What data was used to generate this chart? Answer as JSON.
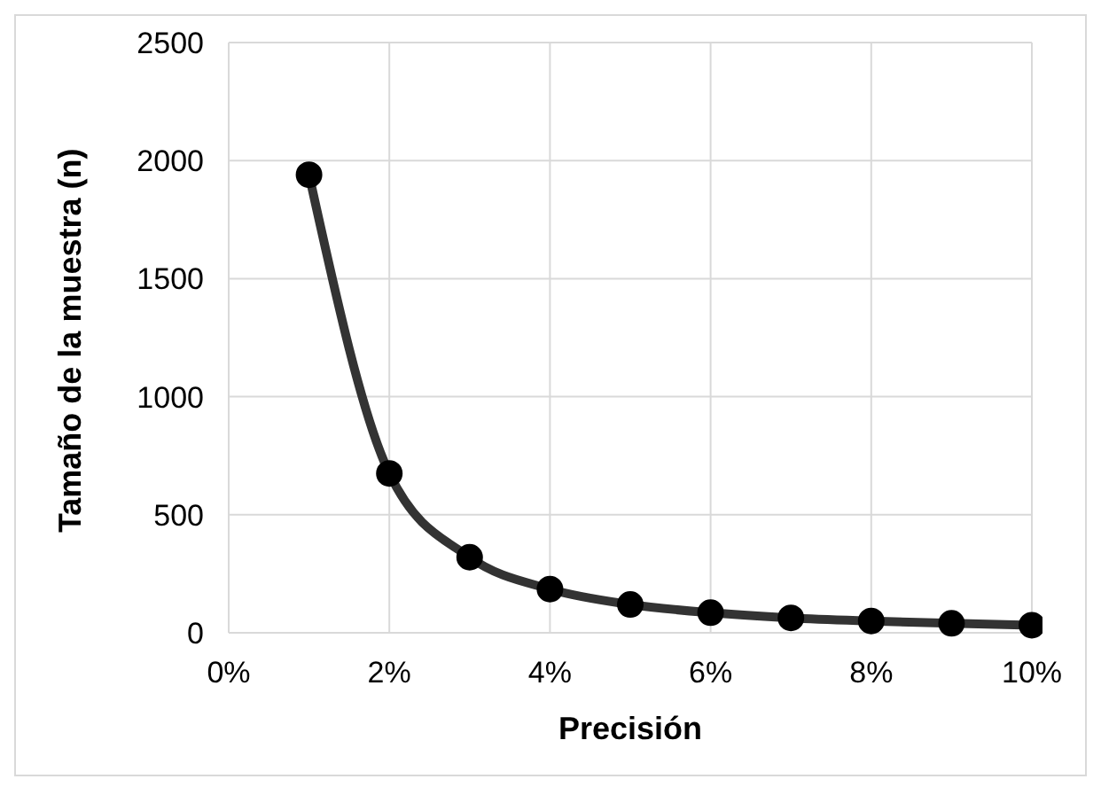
{
  "chart_data": {
    "type": "line",
    "xlabel": "Precisión",
    "ylabel": "Tamaño de la muestra (n)",
    "x": [
      1,
      2,
      3,
      4,
      5,
      6,
      7,
      8,
      9,
      10
    ],
    "series": [
      {
        "color": "#333333",
        "values": [
          1940,
          675,
          320,
          185,
          120,
          85,
          63,
          50,
          40,
          32
        ]
      }
    ],
    "xlim": [
      0,
      10
    ],
    "xticks": [
      {
        "value": 0,
        "label": "0%"
      },
      {
        "value": 2,
        "label": "2%"
      },
      {
        "value": 4,
        "label": "4%"
      },
      {
        "value": 6,
        "label": "6%"
      },
      {
        "value": 8,
        "label": "8%"
      },
      {
        "value": 10,
        "label": "10%"
      }
    ],
    "ylim": [
      0,
      2500
    ],
    "yticks": [
      0,
      500,
      1000,
      1500,
      2000,
      2500
    ],
    "grid": true,
    "marker": "circle",
    "line_style": "solid",
    "legend": false
  }
}
